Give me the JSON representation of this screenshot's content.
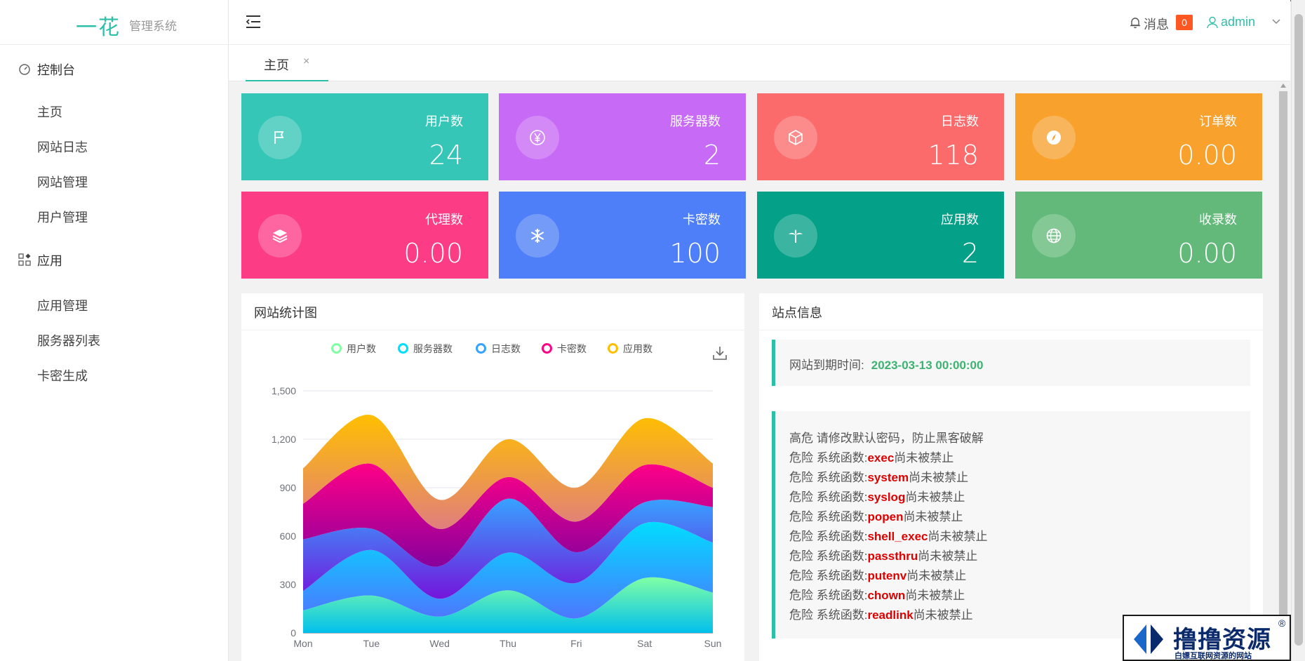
{
  "brand": {
    "logo_text": "一花",
    "system_name": "管理系统"
  },
  "sidebar": {
    "groups": [
      {
        "label": "控制台",
        "icon": "dashboard-icon",
        "items": [
          "主页",
          "网站日志",
          "网站管理",
          "用户管理"
        ]
      },
      {
        "label": "应用",
        "icon": "apps-icon",
        "items": [
          "应用管理",
          "服务器列表",
          "卡密生成"
        ]
      }
    ]
  },
  "header": {
    "messages_label": "消息",
    "messages_count": "0",
    "user_name": "admin"
  },
  "tabs": [
    {
      "label": "主页",
      "close": "×"
    }
  ],
  "cards": [
    {
      "title": "用户数",
      "value": "24",
      "color": "#36c6b7",
      "icon": "flag-icon"
    },
    {
      "title": "服务器数",
      "value": "2",
      "color": "#c76af5",
      "icon": "yen-icon"
    },
    {
      "title": "日志数",
      "value": "118",
      "color": "#fc6b6b",
      "icon": "cube-icon"
    },
    {
      "title": "订单数",
      "value": "0.00",
      "color": "#f8a12d",
      "icon": "compass-icon"
    },
    {
      "title": "代理数",
      "value": "0.00",
      "color": "#fd3c86",
      "icon": "layers-icon"
    },
    {
      "title": "卡密数",
      "value": "100",
      "color": "#4f7ff8",
      "icon": "snowflake-icon"
    },
    {
      "title": "应用数",
      "value": "2",
      "color": "#04a088",
      "icon": "palm-icon"
    },
    {
      "title": "收录数",
      "value": "0.00",
      "color": "#62b979",
      "icon": "globe-icon"
    }
  ],
  "stats_panel": {
    "title": "网站统计图"
  },
  "site_panel": {
    "title": "站点信息",
    "expiry_label": "网站到期时间:",
    "expiry_value": "2023-03-13 00:00:00",
    "warnings": [
      {
        "level": "高危",
        "text": "请修改默认密码，防止黑客破解",
        "fn": "",
        "suffix": ""
      },
      {
        "level": "危险",
        "text": "系统函数:",
        "fn": "exec",
        "suffix": "尚未被禁止"
      },
      {
        "level": "危险",
        "text": "系统函数:",
        "fn": "system",
        "suffix": "尚未被禁止"
      },
      {
        "level": "危险",
        "text": "系统函数:",
        "fn": "syslog",
        "suffix": "尚未被禁止"
      },
      {
        "level": "危险",
        "text": "系统函数:",
        "fn": "popen",
        "suffix": "尚未被禁止"
      },
      {
        "level": "危险",
        "text": "系统函数:",
        "fn": "shell_exec",
        "suffix": "尚未被禁止"
      },
      {
        "level": "危险",
        "text": "系统函数:",
        "fn": "passthru",
        "suffix": "尚未被禁止"
      },
      {
        "level": "危险",
        "text": "系统函数:",
        "fn": "putenv",
        "suffix": "尚未被禁止"
      },
      {
        "level": "危险",
        "text": "系统函数:",
        "fn": "chown",
        "suffix": "尚未被禁止"
      },
      {
        "level": "危险",
        "text": "系统函数:",
        "fn": "readlink",
        "suffix": "尚未被禁止"
      }
    ]
  },
  "watermark": {
    "title": "撸撸资源",
    "subtitle": "白嫖互联网资源的网站",
    "reg": "®"
  },
  "chart_data": {
    "type": "area",
    "stacked": true,
    "categories": [
      "Mon",
      "Tue",
      "Wed",
      "Thu",
      "Fri",
      "Sat",
      "Sun"
    ],
    "ylim": [
      0,
      1500
    ],
    "yticks": [
      "0",
      "300",
      "600",
      "900",
      "1,200",
      "1,500"
    ],
    "legend_position": "top-center",
    "series": [
      {
        "name": "用户数",
        "values": [
          140,
          232,
          101,
          264,
          90,
          340,
          250
        ],
        "colors": [
          "#80ffa5",
          "#01bfec"
        ],
        "legend_color": "#80ffa5"
      },
      {
        "name": "服务器数",
        "values": [
          120,
          282,
          111,
          234,
          220,
          340,
          310
        ],
        "colors": [
          "#00ddff",
          "#4d77ff"
        ],
        "legend_color": "#00ddff"
      },
      {
        "name": "日志数",
        "values": [
          320,
          132,
          201,
          334,
          190,
          130,
          220
        ],
        "colors": [
          "#37a2ff",
          "#7415db"
        ],
        "legend_color": "#37a2ff"
      },
      {
        "name": "卡密数",
        "values": [
          220,
          402,
          231,
          134,
          190,
          230,
          120
        ],
        "colors": [
          "#ff0087",
          "#87009d"
        ],
        "legend_color": "#ff0087"
      },
      {
        "name": "应用数",
        "values": [
          220,
          302,
          181,
          234,
          210,
          290,
          150
        ],
        "colors": [
          "#ffbf00",
          "#e07e7e"
        ],
        "legend_color": "#ffbf00"
      }
    ]
  }
}
